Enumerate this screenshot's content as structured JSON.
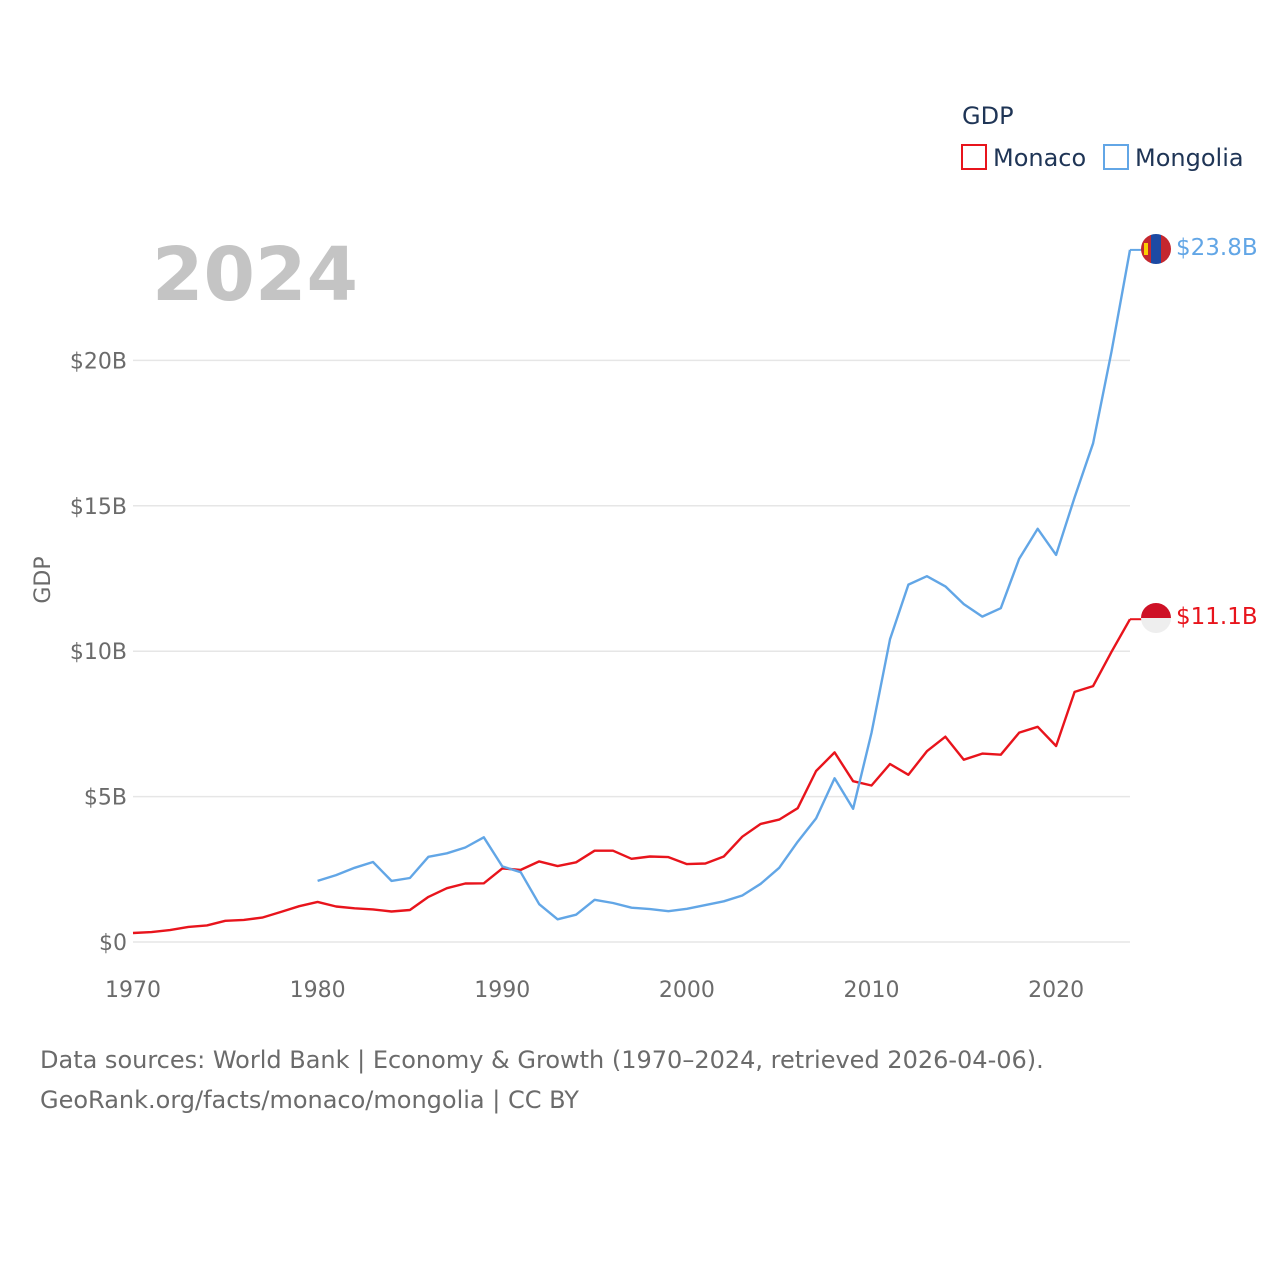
{
  "chart_data": {
    "type": "line",
    "title": "GDP",
    "year_label": "2024",
    "ylabel": "GDP",
    "xlim": [
      1970,
      2024
    ],
    "ylim": [
      0,
      25
    ],
    "x_ticks": [
      1970,
      1980,
      1990,
      2000,
      2010,
      2020
    ],
    "y_ticks": [
      {
        "value": 0,
        "label": "$0"
      },
      {
        "value": 5,
        "label": "$5B"
      },
      {
        "value": 10,
        "label": "$10B"
      },
      {
        "value": 15,
        "label": "$15B"
      },
      {
        "value": 20,
        "label": "$20B"
      }
    ],
    "series": [
      {
        "name": "Monaco",
        "color": "#e8141c",
        "end_label": "$11.1B",
        "x": [
          1970,
          1971,
          1972,
          1973,
          1974,
          1975,
          1976,
          1977,
          1978,
          1979,
          1980,
          1981,
          1982,
          1983,
          1984,
          1985,
          1986,
          1987,
          1988,
          1989,
          1990,
          1991,
          1992,
          1993,
          1994,
          1995,
          1996,
          1997,
          1998,
          1999,
          2000,
          2001,
          2002,
          2003,
          2004,
          2005,
          2006,
          2007,
          2008,
          2009,
          2010,
          2011,
          2012,
          2013,
          2014,
          2015,
          2016,
          2017,
          2018,
          2019,
          2020,
          2021,
          2022,
          2023,
          2024
        ],
        "values": [
          0.31,
          0.34,
          0.41,
          0.52,
          0.57,
          0.73,
          0.76,
          0.84,
          1.03,
          1.23,
          1.38,
          1.22,
          1.16,
          1.12,
          1.05,
          1.1,
          1.55,
          1.85,
          2.01,
          2.02,
          2.53,
          2.48,
          2.77,
          2.61,
          2.74,
          3.14,
          3.14,
          2.86,
          2.94,
          2.92,
          2.68,
          2.7,
          2.94,
          3.62,
          4.06,
          4.21,
          4.6,
          5.88,
          6.52,
          5.53,
          5.38,
          6.12,
          5.75,
          6.56,
          7.06,
          6.27,
          6.48,
          6.44,
          7.2,
          7.4,
          6.74,
          8.6,
          8.8,
          9.98,
          11.1
        ]
      },
      {
        "name": "Mongolia",
        "color": "#62a6e6",
        "end_label": "$23.8B",
        "x": [
          1980,
          1981,
          1982,
          1983,
          1984,
          1985,
          1986,
          1987,
          1988,
          1989,
          1990,
          1991,
          1992,
          1993,
          1994,
          1995,
          1996,
          1997,
          1998,
          1999,
          2000,
          2001,
          2002,
          2003,
          2004,
          2005,
          2006,
          2007,
          2008,
          2009,
          2010,
          2011,
          2012,
          2013,
          2014,
          2015,
          2016,
          2017,
          2018,
          2019,
          2020,
          2021,
          2022,
          2023,
          2024
        ],
        "values": [
          2.1,
          2.3,
          2.55,
          2.75,
          2.1,
          2.2,
          2.93,
          3.05,
          3.25,
          3.6,
          2.6,
          2.4,
          1.3,
          0.78,
          0.94,
          1.45,
          1.34,
          1.18,
          1.13,
          1.06,
          1.14,
          1.27,
          1.4,
          1.6,
          2.0,
          2.55,
          3.45,
          4.25,
          5.63,
          4.58,
          7.19,
          10.41,
          12.29,
          12.58,
          12.23,
          11.62,
          11.19,
          11.48,
          13.18,
          14.21,
          13.31,
          15.29,
          17.15,
          20.3,
          23.8
        ]
      }
    ]
  },
  "source_line1": "Data sources: World Bank | Economy & Growth (1970–2024, retrieved 2026-04-06).",
  "source_line2": "GeoRank.org/facts/monaco/mongolia | CC BY"
}
